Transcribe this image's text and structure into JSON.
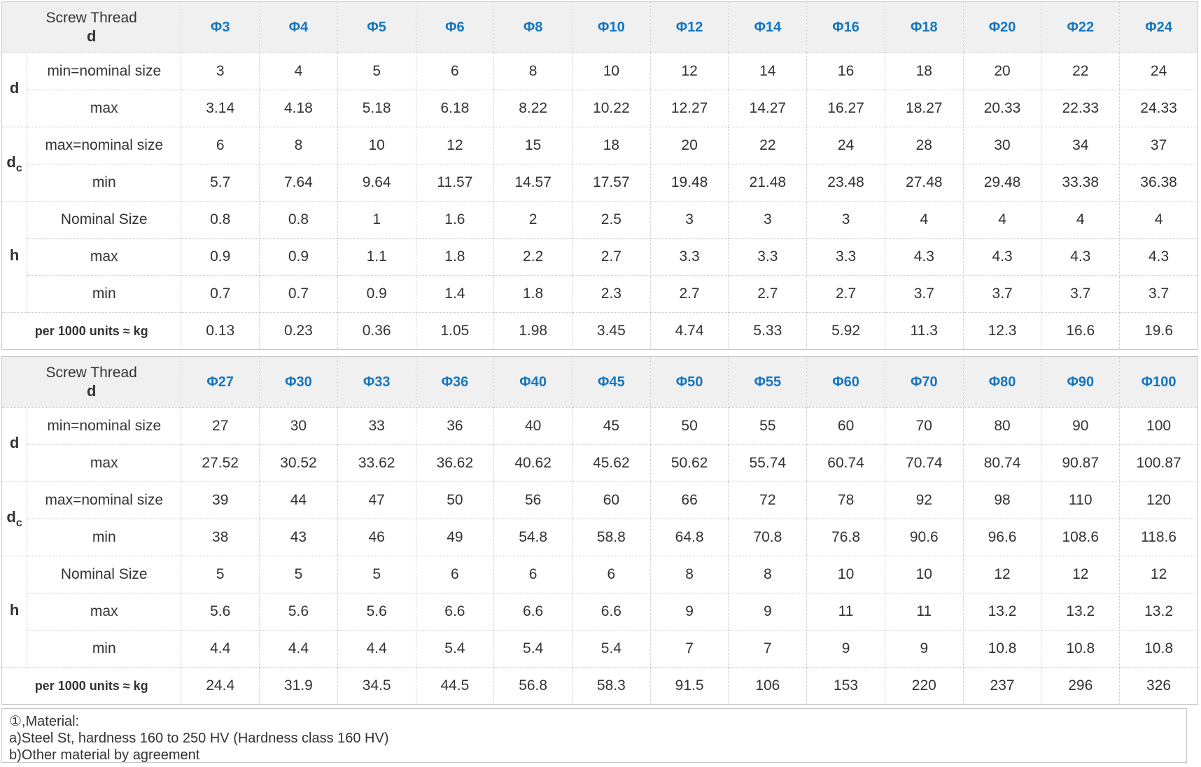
{
  "tables": [
    {
      "corner_title": "Screw Thread",
      "corner_sub": "d",
      "sizes": [
        "Φ3",
        "Φ4",
        "Φ5",
        "Φ6",
        "Φ8",
        "Φ10",
        "Φ12",
        "Φ14",
        "Φ16",
        "Φ18",
        "Φ20",
        "Φ22",
        "Φ24"
      ],
      "rows": [
        {
          "group": "d",
          "group_sub": "",
          "label": "min=nominal size",
          "values": [
            "3",
            "4",
            "5",
            "6",
            "8",
            "10",
            "12",
            "14",
            "16",
            "18",
            "20",
            "22",
            "24"
          ]
        },
        {
          "label": "max",
          "values": [
            "3.14",
            "4.18",
            "5.18",
            "6.18",
            "8.22",
            "10.22",
            "12.27",
            "14.27",
            "16.27",
            "18.27",
            "20.33",
            "22.33",
            "24.33"
          ]
        },
        {
          "group": "d",
          "group_sub": "c",
          "label": "max=nominal size",
          "values": [
            "6",
            "8",
            "10",
            "12",
            "15",
            "18",
            "20",
            "22",
            "24",
            "28",
            "30",
            "34",
            "37"
          ]
        },
        {
          "label": "min",
          "values": [
            "5.7",
            "7.64",
            "9.64",
            "11.57",
            "14.57",
            "17.57",
            "19.48",
            "21.48",
            "23.48",
            "27.48",
            "29.48",
            "33.38",
            "36.38"
          ]
        },
        {
          "group": "h",
          "group_sub": "",
          "label": "Nominal Size",
          "values": [
            "0.8",
            "0.8",
            "1",
            "1.6",
            "2",
            "2.5",
            "3",
            "3",
            "3",
            "4",
            "4",
            "4",
            "4"
          ]
        },
        {
          "label": "max",
          "values": [
            "0.9",
            "0.9",
            "1.1",
            "1.8",
            "2.2",
            "2.7",
            "3.3",
            "3.3",
            "3.3",
            "4.3",
            "4.3",
            "4.3",
            "4.3"
          ]
        },
        {
          "label": "min",
          "values": [
            "0.7",
            "0.7",
            "0.9",
            "1.4",
            "1.8",
            "2.3",
            "2.7",
            "2.7",
            "2.7",
            "3.7",
            "3.7",
            "3.7",
            "3.7"
          ]
        }
      ],
      "weight_label": "per 1000 units ≈ kg",
      "weights": [
        "0.13",
        "0.23",
        "0.36",
        "1.05",
        "1.98",
        "3.45",
        "4.74",
        "5.33",
        "5.92",
        "11.3",
        "12.3",
        "16.6",
        "19.6"
      ]
    },
    {
      "corner_title": "Screw Thread",
      "corner_sub": "d",
      "sizes": [
        "Φ27",
        "Φ30",
        "Φ33",
        "Φ36",
        "Φ40",
        "Φ45",
        "Φ50",
        "Φ55",
        "Φ60",
        "Φ70",
        "Φ80",
        "Φ90",
        "Φ100"
      ],
      "rows": [
        {
          "group": "d",
          "group_sub": "",
          "label": "min=nominal size",
          "values": [
            "27",
            "30",
            "33",
            "36",
            "40",
            "45",
            "50",
            "55",
            "60",
            "70",
            "80",
            "90",
            "100"
          ]
        },
        {
          "label": "max",
          "values": [
            "27.52",
            "30.52",
            "33.62",
            "36.62",
            "40.62",
            "45.62",
            "50.62",
            "55.74",
            "60.74",
            "70.74",
            "80.74",
            "90.87",
            "100.87"
          ]
        },
        {
          "group": "d",
          "group_sub": "c",
          "label": "max=nominal size",
          "values": [
            "39",
            "44",
            "47",
            "50",
            "56",
            "60",
            "66",
            "72",
            "78",
            "92",
            "98",
            "110",
            "120"
          ]
        },
        {
          "label": "min",
          "values": [
            "38",
            "43",
            "46",
            "49",
            "54.8",
            "58.8",
            "64.8",
            "70.8",
            "76.8",
            "90.6",
            "96.6",
            "108.6",
            "118.6"
          ]
        },
        {
          "group": "h",
          "group_sub": "",
          "label": "Nominal Size",
          "values": [
            "5",
            "5",
            "5",
            "6",
            "6",
            "6",
            "8",
            "8",
            "10",
            "10",
            "12",
            "12",
            "12"
          ]
        },
        {
          "label": "max",
          "values": [
            "5.6",
            "5.6",
            "5.6",
            "6.6",
            "6.6",
            "6.6",
            "9",
            "9",
            "11",
            "11",
            "13.2",
            "13.2",
            "13.2"
          ]
        },
        {
          "label": "min",
          "values": [
            "4.4",
            "4.4",
            "4.4",
            "5.4",
            "5.4",
            "5.4",
            "7",
            "7",
            "9",
            "9",
            "10.8",
            "10.8",
            "10.8"
          ]
        }
      ],
      "weight_label": "per 1000 units ≈ kg",
      "weights": [
        "24.4",
        "31.9",
        "34.5",
        "44.5",
        "56.8",
        "58.3",
        "91.5",
        "106",
        "153",
        "220",
        "237",
        "296",
        "326"
      ]
    }
  ],
  "notes": [
    "①,Material:",
    "a)Steel St, hardness 160 to 250 HV (Hardness class 160 HV)",
    "b)Other material by agreement"
  ],
  "colors": {
    "size_header": "#1576c0",
    "header_bg": "#f0f0f0",
    "corner_bg": "#dedede",
    "border": "#c8c8c8",
    "text": "#333333"
  }
}
